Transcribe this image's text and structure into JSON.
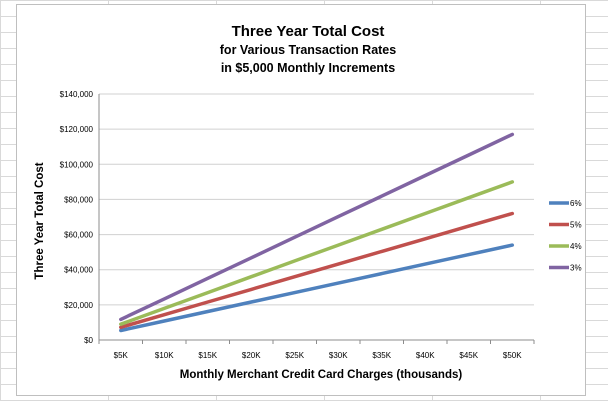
{
  "colors": {
    "background": "#ffffff",
    "sheet_grid": "#d9d9d9",
    "plot_gridline": "#d0d0d0",
    "axis": "#8c8c8c"
  },
  "chart_data": {
    "type": "line",
    "title": "Three Year Total Cost",
    "subtitle_lines": [
      "for Various Transaction Rates",
      "in $5,000 Monthly Increments"
    ],
    "xlabel": "Monthly Merchant Credit Card Charges (thousands)",
    "ylabel": "Three Year Total Cost",
    "categories": [
      "$5K",
      "$10K",
      "$15K",
      "$20K",
      "$25K",
      "$30K",
      "$35K",
      "$40K",
      "$45K",
      "$50K"
    ],
    "y_ticks": [
      "$0",
      "$20,000",
      "$40,000",
      "$60,000",
      "$80,000",
      "$100,000",
      "$120,000",
      "$140,000"
    ],
    "ylim": [
      0,
      140000
    ],
    "grid": true,
    "legend_position": "right",
    "series": [
      {
        "name": "6%",
        "color": "#4f81bd",
        "values": [
          5400,
          10800,
          16200,
          21600,
          27000,
          32400,
          37800,
          43200,
          48600,
          54000
        ]
      },
      {
        "name": "5%",
        "color": "#c0504d",
        "values": [
          7200,
          14400,
          21600,
          28800,
          36000,
          43200,
          50400,
          57600,
          64800,
          72000
        ]
      },
      {
        "name": "4%",
        "color": "#9bbb59",
        "values": [
          9000,
          18000,
          27000,
          36000,
          45000,
          54000,
          63000,
          72000,
          81000,
          90000
        ]
      },
      {
        "name": "3%",
        "color": "#8064a2",
        "values": [
          11700,
          23400,
          35100,
          46800,
          58500,
          70200,
          81900,
          93600,
          105300,
          117000
        ]
      }
    ]
  }
}
